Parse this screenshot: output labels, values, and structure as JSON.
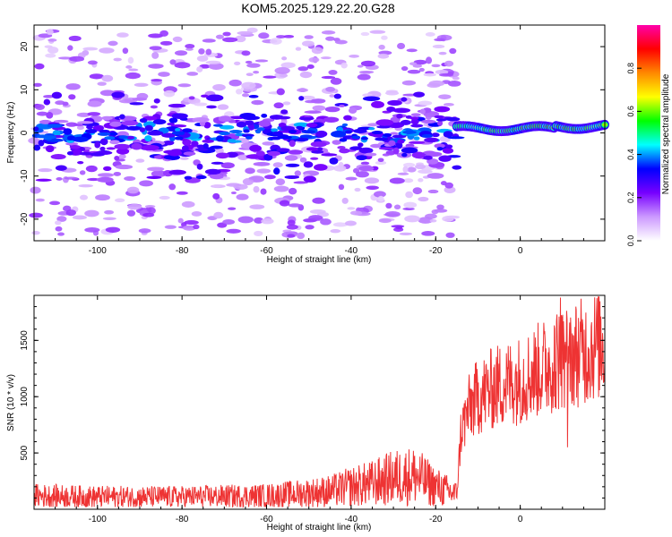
{
  "title": "KOM5.2025.129.22.20.G28",
  "chart_data": [
    {
      "type": "heatmap",
      "xlabel": "Height of straight line (km)",
      "ylabel": "Frequency (Hz)",
      "xlim": [
        -115,
        20
      ],
      "ylim": [
        -25,
        25
      ],
      "xticks": [
        -100,
        -80,
        -60,
        -40,
        -20,
        0
      ],
      "yticks": [
        -20,
        -10,
        0,
        10,
        20
      ],
      "colorbar": {
        "label": "Normalized spectral amplitude",
        "range": [
          0,
          1
        ],
        "ticks": [
          "0.0",
          "0.2",
          "0.4",
          "0.6",
          "0.8"
        ],
        "colors": [
          "#ffffff",
          "#cc99ff",
          "#7700ff",
          "#0000ff",
          "#00ffff",
          "#00ff00",
          "#ffff00",
          "#ff8800",
          "#ff0000",
          "#ff00aa"
        ]
      },
      "features": {
        "noise_region_x": [
          -115,
          -15
        ],
        "signal_region_x": [
          -15,
          20
        ],
        "signal_frequency_hz": 1,
        "max_amplitude_x": [
          -5,
          15
        ]
      }
    },
    {
      "type": "line",
      "xlabel": "Height of straight line (km)",
      "ylabel": "SNR (10 * v/v)",
      "xlim": [
        -115,
        20
      ],
      "ylim": [
        0,
        1900
      ],
      "xticks": [
        -100,
        -80,
        -60,
        -40,
        -20,
        0
      ],
      "yticks": [
        500,
        1000,
        1500
      ],
      "color": "#ee3333",
      "series_envelope": {
        "x": [
          -115,
          -100,
          -80,
          -60,
          -45,
          -40,
          -35,
          -30,
          -25,
          -20,
          -15,
          -14,
          -12,
          -10,
          -5,
          0,
          5,
          10,
          15,
          20
        ],
        "y": [
          120,
          110,
          110,
          120,
          160,
          200,
          230,
          280,
          300,
          200,
          130,
          700,
          900,
          1000,
          1100,
          1150,
          1250,
          1350,
          1400,
          1500
        ]
      }
    }
  ]
}
